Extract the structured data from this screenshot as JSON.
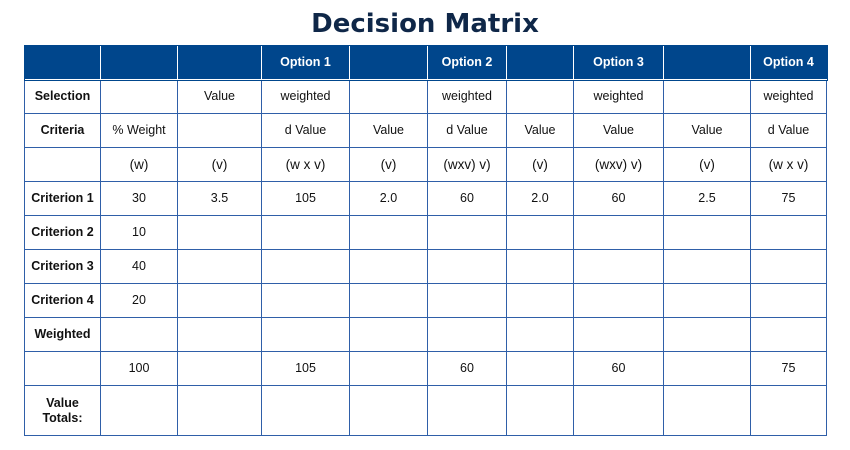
{
  "title": "Decision Matrix",
  "header": [
    "",
    "",
    "",
    "Option 1",
    "",
    "Option 2",
    "",
    "Option 3",
    "",
    "Option 4"
  ],
  "rows": [
    [
      "Selection",
      "",
      "Value",
      "weighted",
      "",
      "weighted",
      "",
      "weighted",
      "",
      "weighted"
    ],
    [
      "Criteria",
      "% Weight",
      "",
      "d Value",
      "Value",
      "d Value",
      "Value",
      "Value",
      "Value",
      "d Value"
    ],
    [
      "",
      "(w)",
      "(v)",
      "(w x v)",
      "(v)",
      "(wxv) v)",
      "(v)",
      "(wxv) v)",
      "(v)",
      "(w x v)"
    ],
    [
      "Criterion 1",
      "30",
      "3.5",
      "105",
      "2.0",
      "60",
      "2.0",
      "60",
      "2.5",
      "75"
    ],
    [
      "Criterion 2",
      "10",
      "",
      "",
      "",
      "",
      "",
      "",
      "",
      ""
    ],
    [
      "Criterion 3",
      "40",
      "",
      "",
      "",
      "",
      "",
      "",
      "",
      ""
    ],
    [
      "Criterion 4",
      "20",
      "",
      "",
      "",
      "",
      "",
      "",
      "",
      ""
    ],
    [
      "Weighted",
      "",
      "",
      "",
      "",
      "",
      "",
      "",
      "",
      ""
    ],
    [
      "",
      "100",
      "",
      "105",
      "",
      "60",
      "",
      "60",
      "",
      "75"
    ],
    [
      "Value Totals:",
      "",
      "",
      "",
      "",
      "",
      "",
      "",
      "",
      ""
    ]
  ]
}
